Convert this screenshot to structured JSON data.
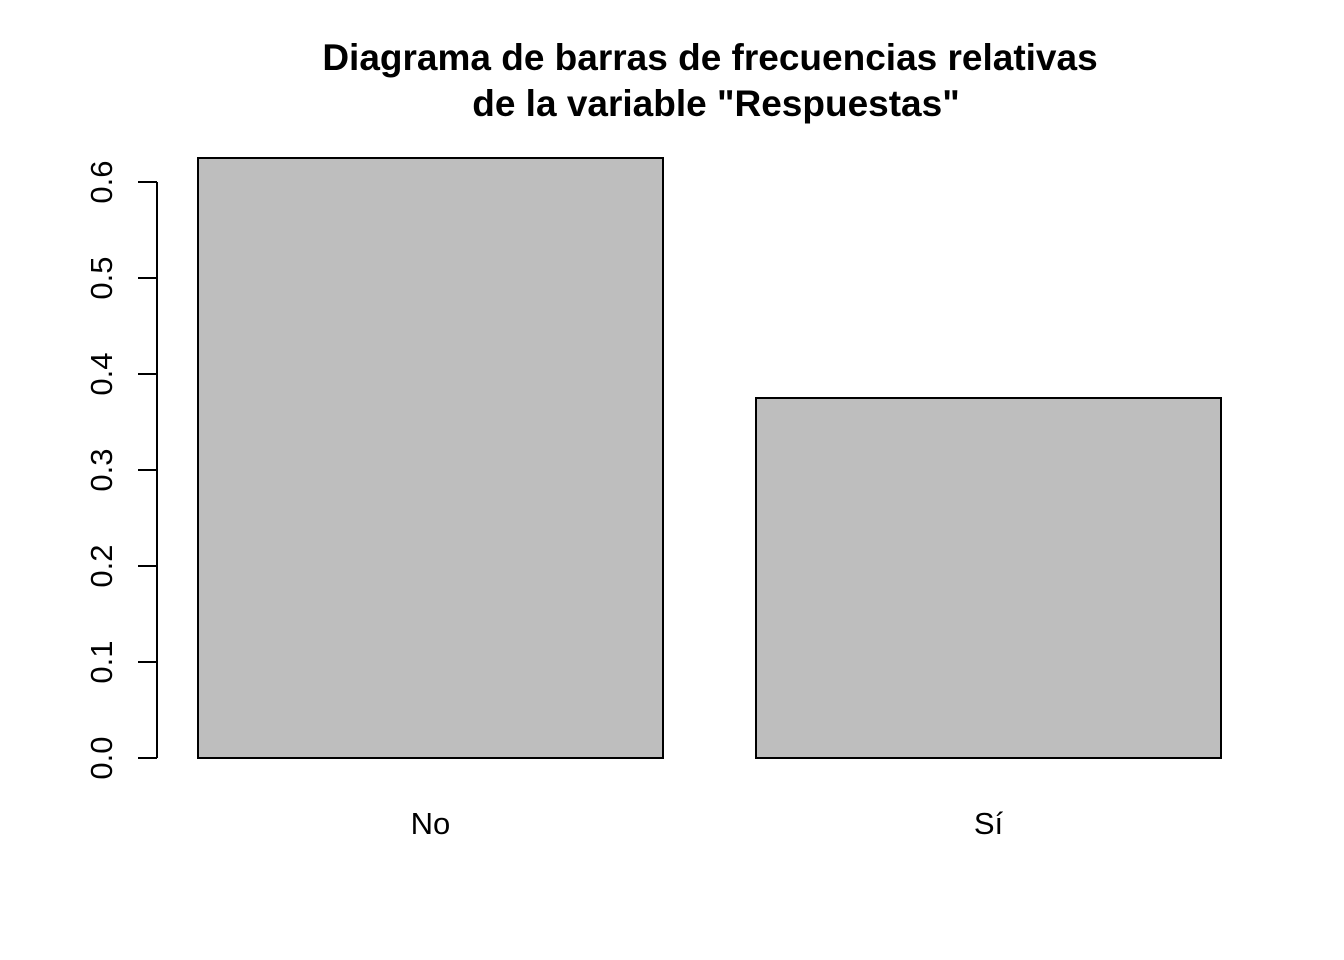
{
  "chart_data": {
    "type": "bar",
    "title_lines": [
      "Diagrama de barras de frecuencias relativas",
      "de la variable \"Respuestas\""
    ],
    "xlabel": "",
    "ylabel": "",
    "categories": [
      "No",
      "Sí"
    ],
    "values": [
      0.625,
      0.375
    ],
    "y_ticks": [
      "0.0",
      "0.1",
      "0.2",
      "0.3",
      "0.4",
      "0.5",
      "0.6"
    ],
    "ylim": [
      0,
      0.6
    ],
    "grid": false,
    "bar_fill": "#bebebe",
    "bar_stroke": "#000000"
  }
}
